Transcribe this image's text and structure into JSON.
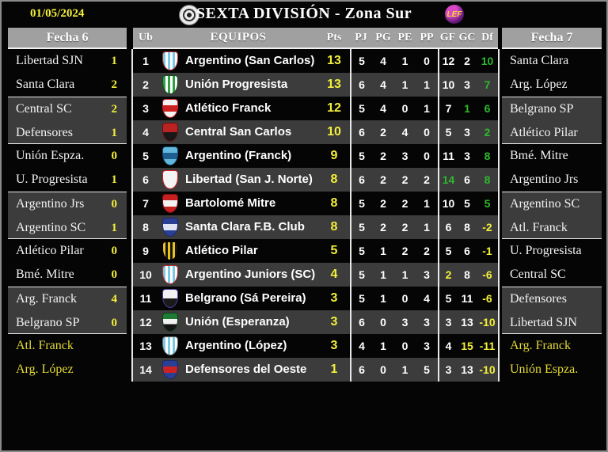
{
  "header": {
    "date": "01/05/2024",
    "title": "SEXTA DIVISIÓN - Zona Sur",
    "league_logo_text": "LEF"
  },
  "colors": {
    "accent_yellow": "#f3ef3b",
    "positive_green": "#2eb82e",
    "row_gray": "#3c3c3c",
    "header_gray": "#a0a0a0"
  },
  "fecha6": {
    "title": "Fecha 6",
    "matches": [
      {
        "home": "Libertad SJN",
        "home_score": "1",
        "away": "Santa Clara",
        "away_score": "2",
        "variant": "black"
      },
      {
        "home": "Central SC",
        "home_score": "2",
        "away": "Defensores",
        "away_score": "1",
        "variant": "gray"
      },
      {
        "home": "Unión Espza.",
        "home_score": "0",
        "away": "U. Progresista",
        "away_score": "1",
        "variant": "black"
      },
      {
        "home": "Argentino Jrs",
        "home_score": "0",
        "away": "Argentino SC",
        "away_score": "1",
        "variant": "gray"
      },
      {
        "home": "Atlético Pilar",
        "home_score": "0",
        "away": "Bmé. Mitre",
        "away_score": "0",
        "variant": "black"
      },
      {
        "home": "Arg. Franck",
        "home_score": "4",
        "away": "Belgrano SP",
        "away_score": "0",
        "variant": "gray"
      },
      {
        "home": "Atl. Franck",
        "home_score": "",
        "away": "Arg. López",
        "away_score": "",
        "variant": "pending"
      }
    ]
  },
  "fecha7": {
    "title": "Fecha 7",
    "matches": [
      {
        "home": "Santa Clara",
        "away": "Arg. López",
        "variant": "black"
      },
      {
        "home": "Belgrano SP",
        "away": "Atlético Pilar",
        "variant": "gray"
      },
      {
        "home": "Bmé. Mitre",
        "away": "Argentino Jrs",
        "variant": "black"
      },
      {
        "home": "Argentino SC",
        "away": "Atl. Franck",
        "variant": "gray"
      },
      {
        "home": "U. Progresista",
        "away": "Central SC",
        "variant": "black"
      },
      {
        "home": "Defensores",
        "away": "Libertad SJN",
        "variant": "gray"
      },
      {
        "home": "Arg. Franck",
        "away": "Unión Espza.",
        "variant": "pending"
      }
    ]
  },
  "standings": {
    "columns": {
      "ub": "Ub",
      "equipos": "EQUIPOS",
      "pts": "Pts",
      "pj": "PJ",
      "pg": "PG",
      "pe": "PE",
      "pp": "PP",
      "gf": "GF",
      "gc": "GC",
      "df": "Df"
    },
    "rows": [
      {
        "pos": "1",
        "team": "Argentino (San Carlos)",
        "pts": "13",
        "pj": "5",
        "pg": "4",
        "pe": "1",
        "pp": "0",
        "gf": "12",
        "gc": "2",
        "df": "10",
        "gf_c": "w",
        "gc_c": "w",
        "df_c": "g",
        "crest": {
          "pattern": "stripes",
          "c1": "#7cc9e4",
          "c2": "#ffffff",
          "border": "#b83030"
        }
      },
      {
        "pos": "2",
        "team": "Unión Progresista",
        "pts": "13",
        "pj": "6",
        "pg": "4",
        "pe": "1",
        "pp": "1",
        "gf": "10",
        "gc": "3",
        "df": "7",
        "gf_c": "w",
        "gc_c": "w",
        "df_c": "g",
        "crest": {
          "pattern": "stripes",
          "c1": "#2f9e44",
          "c2": "#ffffff",
          "border": "#14501f"
        }
      },
      {
        "pos": "3",
        "team": "Atlético Franck",
        "pts": "12",
        "pj": "5",
        "pg": "4",
        "pe": "0",
        "pp": "1",
        "gf": "7",
        "gc": "1",
        "df": "6",
        "gf_c": "w",
        "gc_c": "g",
        "df_c": "g",
        "crest": {
          "pattern": "band",
          "c1": "#f2f2f2",
          "c2": "#cc2020",
          "border": "#cc2020"
        }
      },
      {
        "pos": "4",
        "team": "Central San Carlos",
        "pts": "10",
        "pj": "6",
        "pg": "2",
        "pe": "4",
        "pp": "0",
        "gf": "5",
        "gc": "3",
        "df": "2",
        "gf_c": "w",
        "gc_c": "w",
        "df_c": "g",
        "crest": {
          "pattern": "halves",
          "c1": "#bb2222",
          "c2": "#181818",
          "border": "#661111"
        }
      },
      {
        "pos": "5",
        "team": "Argentino (Franck)",
        "pts": "9",
        "pj": "5",
        "pg": "2",
        "pe": "3",
        "pp": "0",
        "gf": "11",
        "gc": "3",
        "df": "8",
        "gf_c": "w",
        "gc_c": "w",
        "df_c": "g",
        "crest": {
          "pattern": "band",
          "c1": "#62b8dc",
          "c2": "#1f5f8f",
          "border": "#174a70"
        }
      },
      {
        "pos": "6",
        "team": "Libertad (San J. Norte)",
        "pts": "8",
        "pj": "6",
        "pg": "2",
        "pe": "2",
        "pp": "2",
        "gf": "14",
        "gc": "6",
        "df": "8",
        "gf_c": "g",
        "gc_c": "w",
        "df_c": "g",
        "crest": {
          "pattern": "plain",
          "c1": "#f4f4f4",
          "c2": "#cc2020",
          "border": "#cc2020"
        }
      },
      {
        "pos": "7",
        "team": "Bartolomé Mitre",
        "pts": "8",
        "pj": "5",
        "pg": "2",
        "pe": "2",
        "pp": "1",
        "gf": "10",
        "gc": "5",
        "df": "5",
        "gf_c": "w",
        "gc_c": "w",
        "df_c": "g",
        "crest": {
          "pattern": "band",
          "c1": "#c51f1f",
          "c2": "#f2f2f2",
          "border": "#801010"
        }
      },
      {
        "pos": "8",
        "team": "Santa Clara F.B. Club",
        "pts": "8",
        "pj": "5",
        "pg": "2",
        "pe": "2",
        "pp": "1",
        "gf": "6",
        "gc": "8",
        "df": "-2",
        "gf_c": "w",
        "gc_c": "w",
        "df_c": "y",
        "crest": {
          "pattern": "band",
          "c1": "#2b3f94",
          "c2": "#dfe4f5",
          "border": "#1a2a6a"
        }
      },
      {
        "pos": "9",
        "team": "Atlético Pilar",
        "pts": "5",
        "pj": "5",
        "pg": "1",
        "pe": "2",
        "pp": "2",
        "gf": "5",
        "gc": "6",
        "df": "-1",
        "gf_c": "w",
        "gc_c": "w",
        "df_c": "y",
        "crest": {
          "pattern": "stripes",
          "c1": "#e8c020",
          "c2": "#141414",
          "border": "#000000"
        }
      },
      {
        "pos": "10",
        "team": "Argentino Juniors (SC)",
        "pts": "4",
        "pj": "5",
        "pg": "1",
        "pe": "1",
        "pp": "3",
        "gf": "2",
        "gc": "8",
        "df": "-6",
        "gf_c": "y",
        "gc_c": "w",
        "df_c": "y",
        "crest": {
          "pattern": "stripes",
          "c1": "#7cc9e4",
          "c2": "#ffffff",
          "border": "#b83030"
        }
      },
      {
        "pos": "11",
        "team": "Belgrano (Sá Pereira)",
        "pts": "3",
        "pj": "5",
        "pg": "1",
        "pe": "0",
        "pp": "4",
        "gf": "5",
        "gc": "11",
        "df": "-6",
        "gf_c": "w",
        "gc_c": "w",
        "df_c": "y",
        "crest": {
          "pattern": "halves",
          "c1": "#f2f2f2",
          "c2": "#1a1a1a",
          "border": "#4a3f9f"
        }
      },
      {
        "pos": "12",
        "team": "Unión (Esperanza)",
        "pts": "3",
        "pj": "6",
        "pg": "0",
        "pe": "3",
        "pp": "3",
        "gf": "3",
        "gc": "13",
        "df": "-10",
        "gf_c": "w",
        "gc_c": "w",
        "df_c": "y",
        "crest": {
          "pattern": "tri",
          "c1": "#1f7a33",
          "c2": "#f2f2f2",
          "c3": "#141414",
          "border": "#0f3d1a"
        }
      },
      {
        "pos": "13",
        "team": "Argentino (López)",
        "pts": "3",
        "pj": "4",
        "pg": "1",
        "pe": "0",
        "pp": "3",
        "gf": "4",
        "gc": "15",
        "df": "-11",
        "gf_c": "w",
        "gc_c": "y",
        "df_c": "y",
        "crest": {
          "pattern": "stripes",
          "c1": "#7cc9e4",
          "c2": "#ffffff",
          "border": "#6a6a6a"
        }
      },
      {
        "pos": "14",
        "team": "Defensores del Oeste",
        "pts": "1",
        "pj": "6",
        "pg": "0",
        "pe": "1",
        "pp": "5",
        "gf": "3",
        "gc": "13",
        "df": "-10",
        "gf_c": "w",
        "gc_c": "w",
        "df_c": "y",
        "crest": {
          "pattern": "band",
          "c1": "#2b3f94",
          "c2": "#cc2222",
          "border": "#1a2a6a"
        }
      }
    ]
  }
}
